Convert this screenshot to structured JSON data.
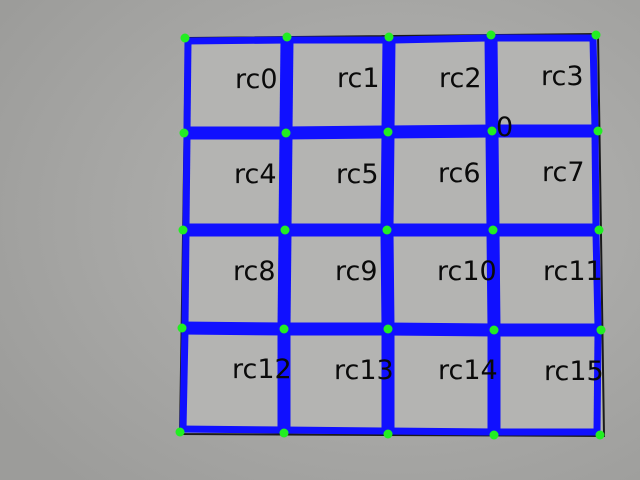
{
  "background_color": "#a9a9a7",
  "paper_color": "#b3b3b1",
  "grid_line_color": "#1010ff",
  "corner_marker_color": "#22ee22",
  "label_color": "#0a0a0a",
  "cells": [
    {
      "label": "rc0"
    },
    {
      "label": "rc1"
    },
    {
      "label": "rc2"
    },
    {
      "label": "rc3"
    },
    {
      "label": "rc4"
    },
    {
      "label": "rc5"
    },
    {
      "label": "rc6"
    },
    {
      "label": "rc7"
    },
    {
      "label": "rc8"
    },
    {
      "label": "rc9"
    },
    {
      "label": "rc10"
    },
    {
      "label": "rc11"
    },
    {
      "label": "rc12"
    },
    {
      "label": "rc13"
    },
    {
      "label": "rc14"
    },
    {
      "label": "rc15"
    }
  ],
  "marker_label": "0"
}
